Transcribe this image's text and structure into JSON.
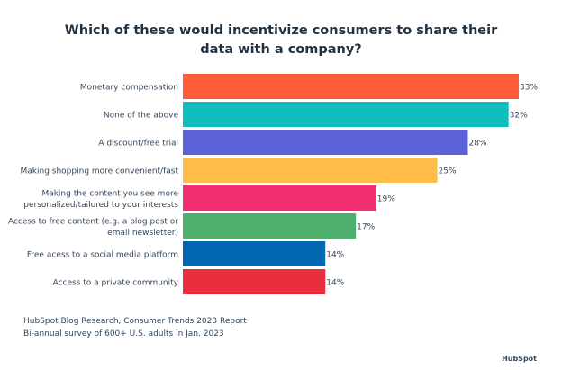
{
  "chart_data": {
    "type": "bar",
    "orientation": "horizontal",
    "title": "Which of these would incentivize consumers to share their data with a company?",
    "title_lines": [
      "Which of these would incentivize consumers to share their",
      "data with a company?"
    ],
    "categories": [
      [
        "Monetary compensation"
      ],
      [
        "None of the above"
      ],
      [
        "A discount/free trial"
      ],
      [
        "Making shopping more convenient/fast"
      ],
      [
        "Making the content you see more",
        "personalized/tailored to your interests"
      ],
      [
        "Access to free content (e.g. a blog post or",
        "email newsletter)"
      ],
      [
        "Free acess to a social media platform"
      ],
      [
        "Access to a private community"
      ]
    ],
    "values": [
      33,
      32,
      28,
      25,
      19,
      17,
      14,
      14
    ],
    "data_labels": [
      "33%",
      "32%",
      "28%",
      "25%",
      "19%",
      "17%",
      "14%",
      "14%"
    ],
    "colors": [
      "#ff5c35",
      "#0fbfbf",
      "#5c62d6",
      "#ffbc4b",
      "#f2306f",
      "#4fb06d",
      "#0068b1",
      "#ea2e40"
    ],
    "xlim": [
      0,
      33
    ],
    "grid": false,
    "xlabel": "",
    "ylabel": ""
  },
  "source": {
    "line1": "HubSpot Blog Research, Consumer Trends 2023 Report",
    "line2": "Bi-annual survey of 600+ U.S. adults in Jan. 2023"
  },
  "logo": "HubSpot"
}
